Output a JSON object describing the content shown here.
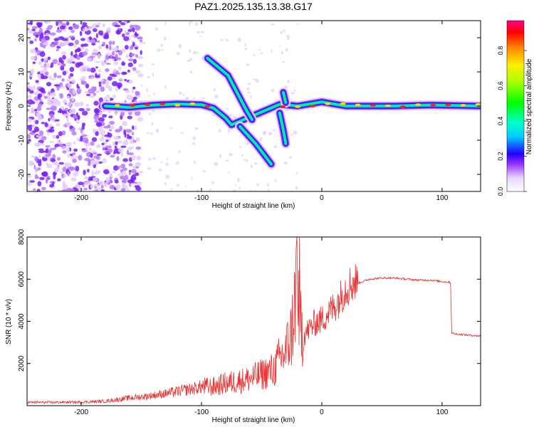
{
  "figure": {
    "title": "PAZ1.2025.135.13.38.G17"
  },
  "chart_data": [
    {
      "type": "heatmap",
      "xlabel": "Height of straight line (km)",
      "ylabel": "Frequency (Hz)",
      "xlim": [
        -245,
        132
      ],
      "ylim": [
        -25,
        25
      ],
      "xticks": [
        -200,
        -100,
        0,
        100
      ],
      "yticks": [
        -20,
        -10,
        0,
        10,
        20
      ],
      "colorbar": {
        "label": "Normalized spectral amplitude",
        "range": [
          0,
          0.97
        ],
        "ticks": [
          0.0,
          0.2,
          0.4,
          0.6,
          0.8
        ]
      },
      "main_ridge": [
        {
          "x": -180,
          "f": 0.0
        },
        {
          "x": -160,
          "f": -0.4
        },
        {
          "x": -140,
          "f": 0.3
        },
        {
          "x": -120,
          "f": 0.6
        },
        {
          "x": -100,
          "f": 0.4
        },
        {
          "x": -90,
          "f": -0.6
        },
        {
          "x": -80,
          "f": -3.5
        },
        {
          "x": -75,
          "f": -5.5
        },
        {
          "x": -35,
          "f": 0.5
        },
        {
          "x": -20,
          "f": 0.0
        },
        {
          "x": 0,
          "f": 1.2
        },
        {
          "x": 20,
          "f": 0.0
        },
        {
          "x": 60,
          "f": 0.0
        },
        {
          "x": 90,
          "f": 0.3
        },
        {
          "x": 132,
          "f": 0.0
        }
      ],
      "branches": [
        [
          {
            "x": -95,
            "f": 14
          },
          {
            "x": -78,
            "f": 9
          },
          {
            "x": -63,
            "f": -1
          },
          {
            "x": -58,
            "f": -4
          }
        ],
        [
          {
            "x": -68,
            "f": -6
          },
          {
            "x": -55,
            "f": -11
          },
          {
            "x": -42,
            "f": -17
          }
        ],
        [
          {
            "x": -35,
            "f": -2
          },
          {
            "x": -32,
            "f": -7
          },
          {
            "x": -30,
            "f": -11
          }
        ],
        [
          {
            "x": -32,
            "f": 4
          },
          {
            "x": -30,
            "f": 1
          }
        ]
      ]
    },
    {
      "type": "line",
      "xlabel": "Height of straight line (km)",
      "ylabel": "SNR (10 * v/v)",
      "xlim": [
        -245,
        132
      ],
      "ylim": [
        0,
        8000
      ],
      "xticks": [
        -200,
        -100,
        0,
        100
      ],
      "yticks": [
        2000,
        4000,
        6000,
        8000
      ],
      "series": [
        {
          "color": "#ee3333",
          "x": [
            -245,
            -220,
            -200,
            -180,
            -160,
            -150,
            -140,
            -130,
            -120,
            -110,
            -100,
            -90,
            -80,
            -70,
            -60,
            -50,
            -40,
            -35,
            -30,
            -25,
            -22,
            -20,
            -18,
            -15,
            -10,
            -5,
            0,
            5,
            10,
            15,
            20,
            25,
            30,
            40,
            50,
            60,
            70,
            80,
            90,
            100,
            107,
            108,
            110,
            120,
            132
          ],
          "y": [
            150,
            150,
            160,
            200,
            350,
            400,
            470,
            550,
            650,
            750,
            850,
            850,
            1000,
            1100,
            1200,
            1400,
            1600,
            2100,
            2400,
            3300,
            5000,
            6500,
            3800,
            3300,
            3600,
            3900,
            4000,
            4300,
            4600,
            5000,
            5500,
            5700,
            5800,
            6000,
            6050,
            6050,
            6000,
            5950,
            5950,
            5880,
            5850,
            3450,
            3400,
            3350,
            3300
          ]
        }
      ]
    }
  ]
}
